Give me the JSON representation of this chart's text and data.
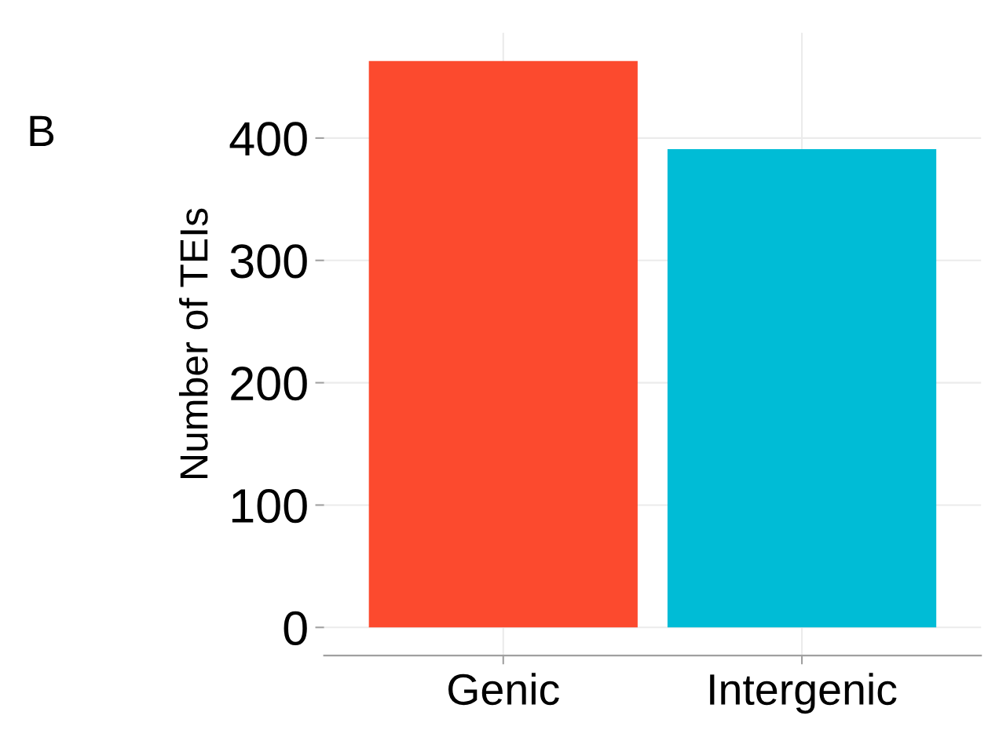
{
  "chart_data": {
    "type": "bar",
    "ylabel": "Number of TEIs",
    "categories": [
      "Genic",
      "Intergenic"
    ],
    "colors": [
      "#fc4a2e",
      "#00bcd6"
    ],
    "values": [
      463,
      391
    ],
    "ylim": [
      -23,
      486
    ],
    "yticks": [
      0,
      100,
      200,
      300,
      400
    ],
    "grid": true,
    "annotations": [
      "B"
    ]
  }
}
